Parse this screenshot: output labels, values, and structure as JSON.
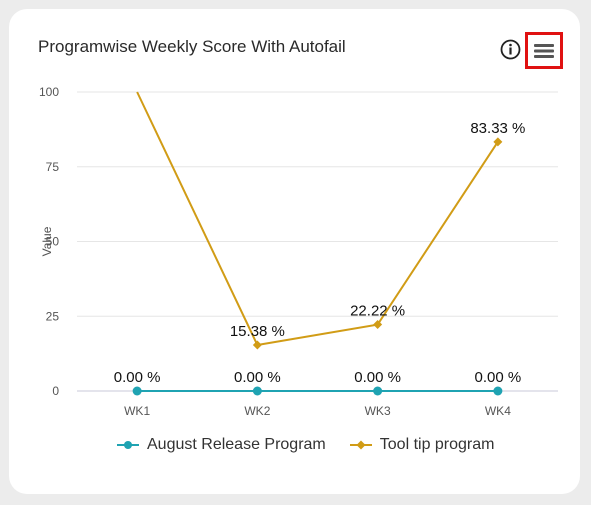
{
  "header": {
    "title": "Programwise Weekly Score With Autofail",
    "info_icon": "info-icon",
    "menu_icon": "hamburger-menu-icon"
  },
  "chart_data": {
    "type": "line",
    "categories": [
      "WK1",
      "WK2",
      "WK3",
      "WK4"
    ],
    "ylabel": "Value",
    "ylim": [
      0,
      100
    ],
    "yticks": [
      0,
      25,
      50,
      75,
      100
    ],
    "series": [
      {
        "name": "August Release Program",
        "color": "#1fa3b2",
        "marker": "circle",
        "values": [
          0,
          0,
          0,
          0
        ],
        "labels": [
          "0.00 %",
          "0.00 %",
          "0.00 %",
          "0.00 %"
        ]
      },
      {
        "name": "Tool tip program",
        "color": "#d19c16",
        "marker": "diamond",
        "values": [
          100,
          15.38,
          22.22,
          83.33
        ],
        "labels": [
          "",
          "15.38 %",
          "22.22 %",
          "83.33 %"
        ]
      }
    ]
  }
}
